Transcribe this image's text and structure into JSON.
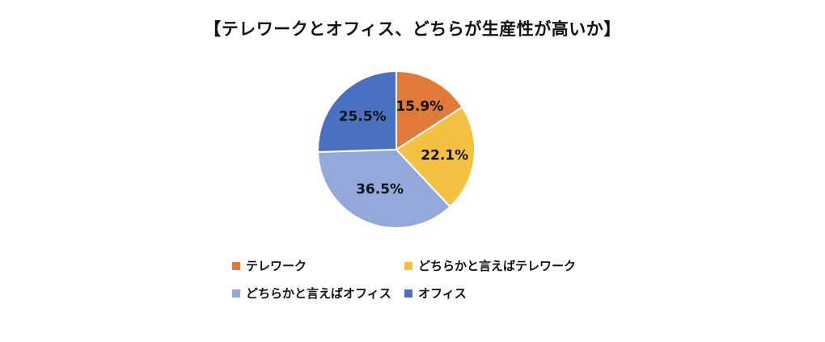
{
  "chart_data": {
    "type": "pie",
    "title": "【テレワークとオフィス、どちらが生産性が高いか】",
    "categories": [
      "テレワーク",
      "どちらかと言えばテレワーク",
      "どちらかと言えばオフィス",
      "オフィス"
    ],
    "values": [
      15.9,
      22.1,
      36.5,
      25.5
    ],
    "value_labels": [
      "15.9%",
      "22.1%",
      "36.5%",
      "25.5%"
    ],
    "colors": [
      "#E0793A",
      "#F4C242",
      "#93A9DC",
      "#4A71C2"
    ],
    "start_angle": "12 o'clock",
    "direction": "clockwise",
    "legend": "bottom"
  }
}
